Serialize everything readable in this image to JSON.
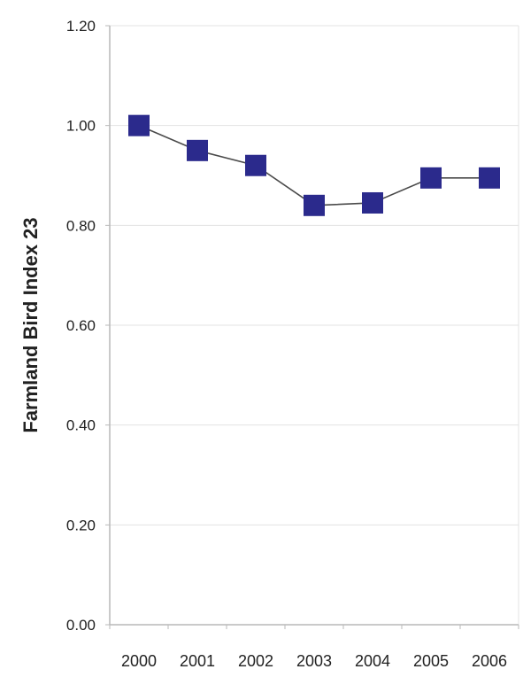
{
  "chart_data": {
    "type": "line",
    "title": "",
    "xlabel": "",
    "ylabel": "Farmland Bird Index 23",
    "categories": [
      "2000",
      "2001",
      "2002",
      "2003",
      "2004",
      "2005",
      "2006"
    ],
    "series": [
      {
        "values": [
          1.0,
          0.95,
          0.92,
          0.84,
          0.845,
          0.895,
          0.895
        ]
      }
    ],
    "ylim": [
      0,
      1.2
    ],
    "yticks": [
      "0.00",
      "0.20",
      "0.40",
      "0.60",
      "0.80",
      "1.00",
      "1.20"
    ],
    "grid": true,
    "legend": "none",
    "colors": {
      "marker": "#2b2a8c",
      "line": "#4a4a4a",
      "grid": "#e3e3e3",
      "axis": "#b9b9b9",
      "text": "#222222"
    }
  }
}
